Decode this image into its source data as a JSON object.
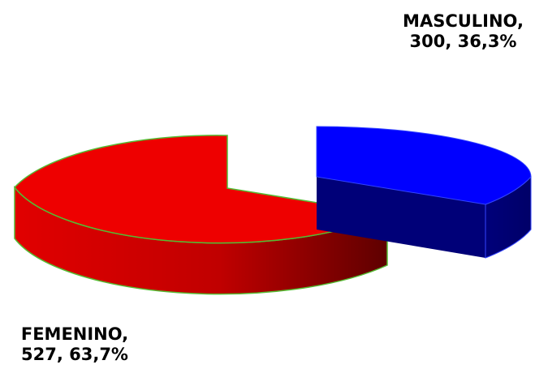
{
  "chart_data": {
    "type": "pie",
    "title": "",
    "slices": [
      {
        "label": "MASCULINO",
        "value": 300,
        "percent": "36,3%",
        "color": "#0000ff",
        "side_color": "#000080"
      },
      {
        "label": "FEMENINO",
        "value": 527,
        "percent": "63,7%",
        "color": "#ee0000",
        "side_color": "#8b0000",
        "edge_color": "#66cc33"
      }
    ],
    "labels": {
      "masculino": {
        "line1": "MASCULINO,",
        "line2": "300, 36,3%"
      },
      "femenino": {
        "line1": "FEMENINO,",
        "line2": "527, 63,7%"
      }
    },
    "style": "3d-exploded"
  }
}
